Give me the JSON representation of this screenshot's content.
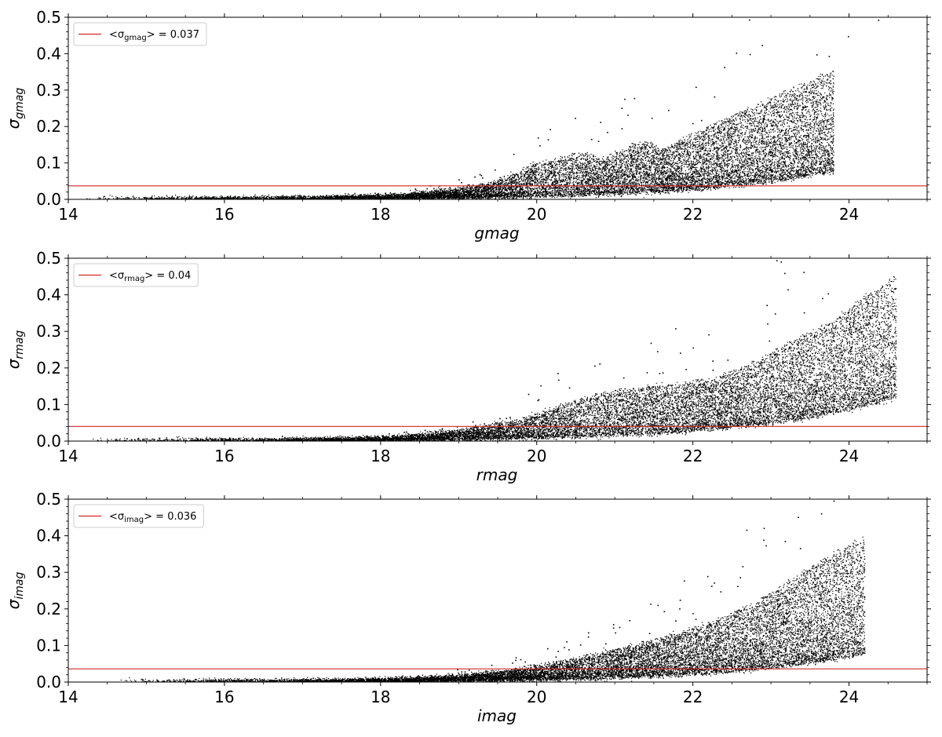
{
  "chart_data": [
    {
      "type": "scatter",
      "xlabel": "gmag",
      "ylabel_symbol": "σ",
      "ylabel_sub": "gmag",
      "xlim": [
        14,
        25
      ],
      "ylim": [
        0,
        0.5
      ],
      "xticks": [
        14,
        16,
        18,
        20,
        22,
        24
      ],
      "xtick_labels": [
        "14",
        "16",
        "18",
        "20",
        "22",
        "24"
      ],
      "yticks": [
        0.0,
        0.1,
        0.2,
        0.3,
        0.4,
        0.5
      ],
      "ytick_labels": [
        "0.0",
        "0.1",
        "0.2",
        "0.3",
        "0.4",
        "0.5"
      ],
      "grid": false,
      "legend_position": "top-left",
      "mean_line": {
        "y": 0.037,
        "color": "#d62728",
        "label_prefix": "<σ",
        "label_sub": "gmag",
        "label_suffix": "> = 0.037"
      },
      "series": [
        {
          "color": "#000000",
          "x": [
            14.2,
            15.0,
            15.8,
            16.6,
            17.2,
            17.8,
            18.2,
            18.6,
            19.0,
            19.4,
            19.6,
            19.8,
            20.0,
            20.2,
            20.4,
            20.6,
            20.8,
            21.0,
            21.2,
            21.4,
            21.6,
            21.8,
            22.0,
            22.2,
            22.4,
            22.6,
            22.8,
            23.0,
            23.2,
            23.4,
            23.6,
            23.8
          ],
          "y": [
            0.001,
            0.001,
            0.002,
            0.003,
            0.005,
            0.008,
            0.012,
            0.02,
            0.03,
            0.045,
            0.06,
            0.08,
            0.1,
            0.11,
            0.12,
            0.13,
            0.11,
            0.13,
            0.15,
            0.16,
            0.14,
            0.16,
            0.18,
            0.2,
            0.22,
            0.24,
            0.26,
            0.28,
            0.3,
            0.32,
            0.34,
            0.35
          ]
        }
      ]
    },
    {
      "type": "scatter",
      "xlabel": "rmag",
      "ylabel_symbol": "σ",
      "ylabel_sub": "rmag",
      "xlim": [
        14,
        25
      ],
      "ylim": [
        0,
        0.5
      ],
      "xticks": [
        14,
        16,
        18,
        20,
        22,
        24
      ],
      "xtick_labels": [
        "14",
        "16",
        "18",
        "20",
        "22",
        "24"
      ],
      "yticks": [
        0.0,
        0.1,
        0.2,
        0.3,
        0.4,
        0.5
      ],
      "ytick_labels": [
        "0.0",
        "0.1",
        "0.2",
        "0.3",
        "0.4",
        "0.5"
      ],
      "grid": false,
      "legend_position": "top-left",
      "mean_line": {
        "y": 0.04,
        "color": "#d62728",
        "label_prefix": "<σ",
        "label_sub": "rmag",
        "label_suffix": "> = 0.04"
      },
      "series": [
        {
          "color": "#000000",
          "x": [
            14.2,
            15.0,
            15.8,
            16.6,
            17.2,
            17.8,
            18.2,
            18.6,
            19.0,
            19.4,
            19.8,
            20.2,
            20.6,
            21.0,
            21.4,
            21.8,
            22.2,
            22.6,
            23.0,
            23.4,
            23.8,
            24.2,
            24.6
          ],
          "y": [
            0.001,
            0.001,
            0.002,
            0.003,
            0.005,
            0.008,
            0.012,
            0.02,
            0.03,
            0.045,
            0.06,
            0.09,
            0.12,
            0.14,
            0.15,
            0.16,
            0.17,
            0.2,
            0.24,
            0.29,
            0.33,
            0.4,
            0.45
          ]
        }
      ]
    },
    {
      "type": "scatter",
      "xlabel": "imag",
      "ylabel_symbol": "σ",
      "ylabel_sub": "imag",
      "xlim": [
        14,
        25
      ],
      "ylim": [
        0,
        0.5
      ],
      "xticks": [
        14,
        16,
        18,
        20,
        22,
        24
      ],
      "xtick_labels": [
        "14",
        "16",
        "18",
        "20",
        "22",
        "24"
      ],
      "yticks": [
        0.0,
        0.1,
        0.2,
        0.3,
        0.4,
        0.5
      ],
      "ytick_labels": [
        "0.0",
        "0.1",
        "0.2",
        "0.3",
        "0.4",
        "0.5"
      ],
      "grid": false,
      "legend_position": "top-left",
      "mean_line": {
        "y": 0.036,
        "color": "#d62728",
        "label_prefix": "<σ",
        "label_sub": "imag",
        "label_suffix": "> = 0.036"
      },
      "series": [
        {
          "color": "#000000",
          "x": [
            14.6,
            15.2,
            16.0,
            16.8,
            17.4,
            18.0,
            18.4,
            18.8,
            19.2,
            19.6,
            20.0,
            20.4,
            20.8,
            21.2,
            21.6,
            22.0,
            22.4,
            22.8,
            23.2,
            23.6,
            24.2
          ],
          "y": [
            0.001,
            0.001,
            0.002,
            0.003,
            0.004,
            0.006,
            0.01,
            0.015,
            0.022,
            0.03,
            0.045,
            0.06,
            0.08,
            0.1,
            0.12,
            0.15,
            0.18,
            0.22,
            0.27,
            0.33,
            0.4
          ]
        }
      ]
    }
  ]
}
